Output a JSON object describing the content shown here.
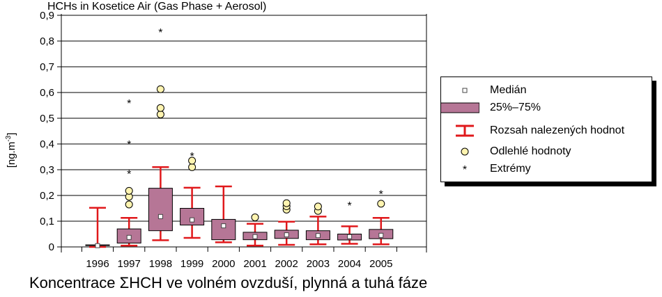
{
  "chart_data": {
    "type": "box",
    "title": "HCHs in Kosetice Air (Gas Phase + Aerosol)",
    "ylabel": "[ng.m-3]",
    "ylabel_base": "[ng.m",
    "ylabel_sup": "-3",
    "ylabel_end": "]",
    "ylim": [
      0,
      0.9
    ],
    "yticks": [
      "0",
      "0,1",
      "0,2",
      "0,3",
      "0,4",
      "0,5",
      "0,6",
      "0,7",
      "0,8",
      "0,9"
    ],
    "grid": true,
    "categories": [
      "1996",
      "1997",
      "1998",
      "1999",
      "2000",
      "2001",
      "2002",
      "2003",
      "2004",
      "2005"
    ],
    "boxes": [
      {
        "year": "1996",
        "min": 0.0,
        "q1": 0.005,
        "median": 0.005,
        "q3": 0.008,
        "max": 0.152,
        "outliers": [],
        "extremes": []
      },
      {
        "year": "1997",
        "min": 0.005,
        "q1": 0.015,
        "median": 0.037,
        "q3": 0.07,
        "max": 0.113,
        "outliers": [
          0.165,
          0.195,
          0.218
        ],
        "extremes": [
          0.29,
          0.405,
          0.565
        ]
      },
      {
        "year": "1998",
        "min": 0.026,
        "q1": 0.063,
        "median": 0.118,
        "q3": 0.228,
        "max": 0.31,
        "outliers": [
          0.515,
          0.54,
          0.613
        ],
        "extremes": [
          0.84
        ]
      },
      {
        "year": "1999",
        "min": 0.035,
        "q1": 0.085,
        "median": 0.105,
        "q3": 0.15,
        "max": 0.23,
        "outliers": [
          0.31,
          0.335
        ],
        "extremes": [
          0.36
        ]
      },
      {
        "year": "2000",
        "min": 0.018,
        "q1": 0.028,
        "median": 0.082,
        "q3": 0.107,
        "max": 0.235,
        "outliers": [],
        "extremes": []
      },
      {
        "year": "2001",
        "min": 0.005,
        "q1": 0.028,
        "median": 0.04,
        "q3": 0.057,
        "max": 0.09,
        "outliers": [
          0.115
        ],
        "extremes": []
      },
      {
        "year": "2002",
        "min": 0.008,
        "q1": 0.033,
        "median": 0.047,
        "q3": 0.065,
        "max": 0.098,
        "outliers": [
          0.145,
          0.158,
          0.17
        ],
        "extremes": []
      },
      {
        "year": "2003",
        "min": 0.01,
        "q1": 0.028,
        "median": 0.044,
        "q3": 0.063,
        "max": 0.118,
        "outliers": [
          0.14,
          0.157
        ],
        "extremes": []
      },
      {
        "year": "2004",
        "min": 0.012,
        "q1": 0.027,
        "median": 0.04,
        "q3": 0.05,
        "max": 0.08,
        "outliers": [],
        "extremes": [
          0.168
        ]
      },
      {
        "year": "2005",
        "min": 0.01,
        "q1": 0.032,
        "median": 0.045,
        "q3": 0.068,
        "max": 0.113,
        "outliers": [
          0.168
        ],
        "extremes": [
          0.212
        ]
      }
    ],
    "legend": {
      "placement": "right",
      "entries": [
        "Medián",
        "25%–75%",
        "Rozsah nalezených hodnot",
        "Odlehlé hodnoty",
        "Extrémy"
      ]
    },
    "colors": {
      "box_fill": "#b67696",
      "whisker": "#e0181b",
      "outlier_fill": "#fff4b0",
      "grid": "#000000"
    }
  },
  "caption": {
    "before_sigma": "Koncentrace ",
    "sigma": "Σ",
    "after_sigma": "HCH ve volném ovzduší, plynná a tuhá fáze"
  }
}
